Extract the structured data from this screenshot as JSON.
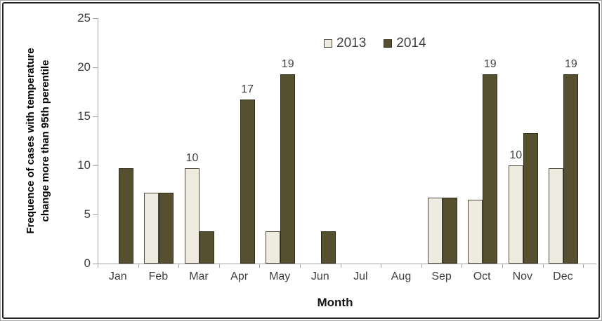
{
  "chart_data": {
    "type": "bar",
    "title": "",
    "xlabel": "Month",
    "ylabel_lines": [
      "Frequence of cases with temperature",
      "change more than 95th perentile"
    ],
    "categories": [
      "Jan",
      "Feb",
      "Mar",
      "Apr",
      "May",
      "Jun",
      "Jul",
      "Aug",
      "Sep",
      "Oct",
      "Nov",
      "Dec"
    ],
    "series": [
      {
        "name": "2013",
        "color": "#eeebe0",
        "border": "#4e4a3c",
        "values": [
          0,
          7.2,
          9.7,
          0,
          3.3,
          0,
          0,
          0,
          6.7,
          6.5,
          10,
          9.7
        ]
      },
      {
        "name": "2014",
        "color": "#565031",
        "border": "#2e2b1b",
        "values": [
          9.7,
          7.2,
          3.3,
          16.7,
          19.3,
          3.3,
          0,
          0,
          6.7,
          19.3,
          13.3,
          19.3
        ]
      }
    ],
    "bar_labels": [
      {
        "month": "Mar",
        "series": "2013",
        "text": "10"
      },
      {
        "month": "Apr",
        "series": "2014",
        "text": "17"
      },
      {
        "month": "May",
        "series": "2014",
        "text": "19"
      },
      {
        "month": "Oct",
        "series": "2014",
        "text": "19"
      },
      {
        "month": "Nov",
        "series": "2013",
        "text": "10"
      },
      {
        "month": "Dec",
        "series": "2014",
        "text": "19"
      }
    ],
    "y_axis": {
      "min": 0,
      "max": 25,
      "step": 5,
      "tick_labels": [
        "0",
        "5",
        "10",
        "15",
        "20",
        "25"
      ]
    },
    "legend": {
      "position": "top-center",
      "entries": [
        "2013",
        "2014"
      ]
    },
    "grid": false,
    "axis_color": "#a6a6a6",
    "text_color": "#3f3f3f",
    "frame_color": "#262626"
  }
}
